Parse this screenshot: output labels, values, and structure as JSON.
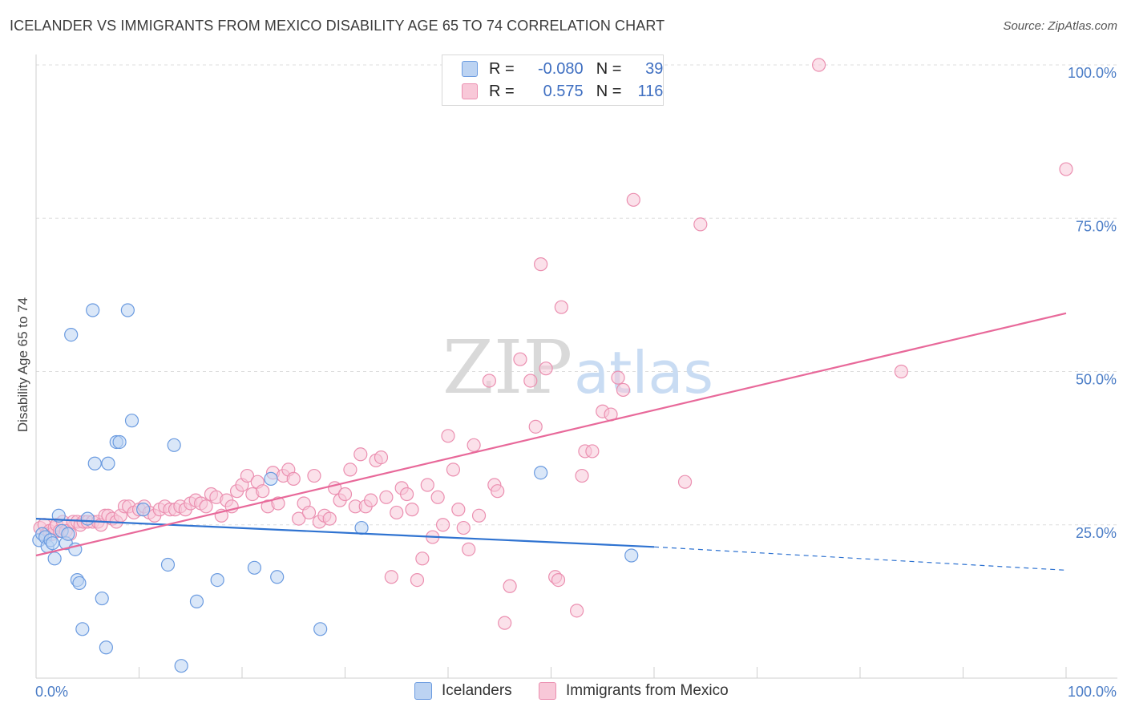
{
  "title": "ICELANDER VS IMMIGRANTS FROM MEXICO DISABILITY AGE 65 TO 74 CORRELATION CHART",
  "source": "Source: ZipAtlas.com",
  "watermark": {
    "zip": "ZIP",
    "atlas": "atlas"
  },
  "legend": {
    "r_label": "R =",
    "n_label": "N =",
    "rows": [
      {
        "r": "-0.080",
        "n": "39"
      },
      {
        "r": "0.575",
        "n": "116"
      }
    ]
  },
  "colors": {
    "blue_fill": "#bcd3f2",
    "blue_stroke": "#6b9be0",
    "blue_line": "#2f73d1",
    "pink_fill": "#f8c8d8",
    "pink_stroke": "#eb8fb0",
    "pink_line": "#e8699a",
    "grid": "#dddddd",
    "tick_text": "#4a7cc6"
  },
  "chart_data": {
    "type": "scatter",
    "title": "ICELANDER VS IMMIGRANTS FROM MEXICO DISABILITY AGE 65 TO 74 CORRELATION CHART",
    "xlabel": "",
    "ylabel": "Disability Age 65 to 74",
    "xlim": [
      0,
      100
    ],
    "ylim": [
      0,
      102
    ],
    "x_tick_labels": [
      "0.0%",
      "100.0%"
    ],
    "y_ticks": [
      25,
      50,
      75,
      100
    ],
    "y_tick_labels": [
      "25.0%",
      "50.0%",
      "75.0%",
      "100.0%"
    ],
    "grid": true,
    "legend_position": "top-center",
    "series": [
      {
        "name": "Icelanders",
        "r": -0.08,
        "n": 39,
        "points": [
          [
            0.3,
            22.5
          ],
          [
            0.6,
            23.5
          ],
          [
            0.9,
            23.0
          ],
          [
            1.1,
            21.5
          ],
          [
            1.4,
            22.5
          ],
          [
            1.6,
            22.0
          ],
          [
            1.8,
            19.5
          ],
          [
            2.2,
            26.5
          ],
          [
            2.5,
            24.0
          ],
          [
            2.9,
            22.0
          ],
          [
            3.1,
            23.5
          ],
          [
            3.4,
            56.0
          ],
          [
            3.8,
            21.0
          ],
          [
            4.0,
            16.0
          ],
          [
            4.2,
            15.5
          ],
          [
            4.5,
            8.0
          ],
          [
            5.0,
            26.0
          ],
          [
            5.5,
            60.0
          ],
          [
            5.7,
            35.0
          ],
          [
            6.4,
            13.0
          ],
          [
            6.8,
            5.0
          ],
          [
            7.0,
            35.0
          ],
          [
            7.8,
            38.5
          ],
          [
            8.1,
            38.5
          ],
          [
            8.9,
            60.0
          ],
          [
            9.3,
            42.0
          ],
          [
            10.4,
            27.5
          ],
          [
            12.8,
            18.5
          ],
          [
            13.4,
            38.0
          ],
          [
            14.1,
            2.0
          ],
          [
            15.6,
            12.5
          ],
          [
            17.6,
            16.0
          ],
          [
            21.2,
            18.0
          ],
          [
            22.8,
            32.5
          ],
          [
            23.4,
            16.5
          ],
          [
            27.6,
            8.0
          ],
          [
            31.6,
            24.5
          ],
          [
            49.0,
            33.5
          ],
          [
            57.8,
            20.0
          ]
        ],
        "trend": {
          "x": [
            0,
            60
          ],
          "y": [
            26.0,
            21.4
          ],
          "dashed_extension": {
            "x": [
              60,
              100
            ],
            "y": [
              21.4,
              17.6
            ]
          }
        }
      },
      {
        "name": "Immigrants from Mexico",
        "r": 0.575,
        "n": 116,
        "points": [
          [
            0.4,
            24.5
          ],
          [
            0.8,
            25.0
          ],
          [
            1.0,
            23.5
          ],
          [
            1.3,
            24.0
          ],
          [
            1.6,
            23.5
          ],
          [
            1.8,
            24.5
          ],
          [
            2.0,
            25.0
          ],
          [
            2.3,
            24.0
          ],
          [
            2.6,
            25.5
          ],
          [
            2.9,
            24.0
          ],
          [
            3.3,
            23.5
          ],
          [
            3.6,
            25.5
          ],
          [
            4.0,
            25.5
          ],
          [
            4.3,
            25.0
          ],
          [
            4.6,
            25.5
          ],
          [
            5.0,
            25.5
          ],
          [
            5.5,
            25.5
          ],
          [
            6.0,
            25.5
          ],
          [
            6.3,
            25.0
          ],
          [
            6.7,
            26.5
          ],
          [
            7.0,
            26.5
          ],
          [
            7.4,
            26.0
          ],
          [
            7.8,
            25.5
          ],
          [
            8.2,
            26.5
          ],
          [
            8.6,
            28.0
          ],
          [
            9.0,
            28.0
          ],
          [
            9.5,
            27.0
          ],
          [
            10.0,
            27.5
          ],
          [
            10.5,
            28.0
          ],
          [
            11.0,
            27.0
          ],
          [
            11.5,
            26.5
          ],
          [
            12.0,
            27.5
          ],
          [
            12.5,
            28.0
          ],
          [
            13.0,
            27.5
          ],
          [
            13.5,
            27.5
          ],
          [
            14.0,
            28.0
          ],
          [
            14.5,
            27.5
          ],
          [
            15.0,
            28.5
          ],
          [
            15.5,
            29.0
          ],
          [
            16.0,
            28.5
          ],
          [
            16.5,
            28.0
          ],
          [
            17.0,
            30.0
          ],
          [
            17.5,
            29.5
          ],
          [
            18.0,
            26.5
          ],
          [
            18.5,
            29.0
          ],
          [
            19.0,
            28.0
          ],
          [
            19.5,
            30.5
          ],
          [
            20.0,
            31.5
          ],
          [
            20.5,
            33.0
          ],
          [
            21.0,
            30.0
          ],
          [
            21.5,
            32.0
          ],
          [
            22.0,
            30.5
          ],
          [
            22.5,
            28.0
          ],
          [
            23.0,
            33.5
          ],
          [
            23.5,
            28.5
          ],
          [
            24.0,
            33.0
          ],
          [
            24.5,
            34.0
          ],
          [
            25.0,
            32.5
          ],
          [
            25.5,
            26.0
          ],
          [
            26.0,
            28.5
          ],
          [
            26.5,
            27.0
          ],
          [
            27.0,
            33.0
          ],
          [
            27.5,
            25.5
          ],
          [
            28.0,
            26.5
          ],
          [
            28.5,
            26.0
          ],
          [
            29.0,
            31.0
          ],
          [
            29.5,
            29.0
          ],
          [
            30.0,
            30.0
          ],
          [
            30.5,
            34.0
          ],
          [
            31.0,
            28.0
          ],
          [
            31.5,
            36.5
          ],
          [
            32.0,
            28.0
          ],
          [
            32.5,
            29.0
          ],
          [
            33.0,
            35.5
          ],
          [
            33.5,
            36.0
          ],
          [
            34.0,
            29.5
          ],
          [
            34.5,
            16.5
          ],
          [
            35.0,
            27.0
          ],
          [
            35.5,
            31.0
          ],
          [
            36.0,
            30.0
          ],
          [
            36.5,
            27.5
          ],
          [
            37.0,
            16.0
          ],
          [
            37.5,
            19.5
          ],
          [
            38.0,
            31.5
          ],
          [
            38.5,
            23.0
          ],
          [
            39.0,
            29.5
          ],
          [
            39.5,
            25.0
          ],
          [
            40.0,
            39.5
          ],
          [
            40.5,
            34.0
          ],
          [
            41.0,
            27.5
          ],
          [
            41.5,
            24.5
          ],
          [
            42.0,
            21.0
          ],
          [
            42.5,
            38.0
          ],
          [
            43.0,
            26.5
          ],
          [
            44.0,
            48.5
          ],
          [
            44.5,
            31.5
          ],
          [
            44.8,
            30.5
          ],
          [
            45.5,
            9.0
          ],
          [
            46.0,
            15.0
          ],
          [
            47.0,
            52.0
          ],
          [
            48.0,
            48.5
          ],
          [
            48.5,
            41.0
          ],
          [
            49.0,
            67.5
          ],
          [
            49.5,
            50.5
          ],
          [
            50.4,
            16.5
          ],
          [
            50.7,
            16.0
          ],
          [
            51.0,
            60.5
          ],
          [
            52.5,
            11.0
          ],
          [
            53.0,
            33.0
          ],
          [
            53.3,
            37.0
          ],
          [
            54.0,
            37.0
          ],
          [
            55.0,
            43.5
          ],
          [
            55.8,
            43.0
          ],
          [
            56.5,
            49.0
          ],
          [
            57.0,
            47.0
          ],
          [
            58.0,
            78.0
          ],
          [
            63.0,
            32.0
          ],
          [
            64.5,
            74.0
          ],
          [
            76.0,
            100.0
          ],
          [
            84.0,
            50.0
          ],
          [
            100.0,
            83.0
          ]
        ],
        "trend": {
          "x": [
            0,
            100
          ],
          "y": [
            20.0,
            59.5
          ]
        }
      }
    ]
  }
}
